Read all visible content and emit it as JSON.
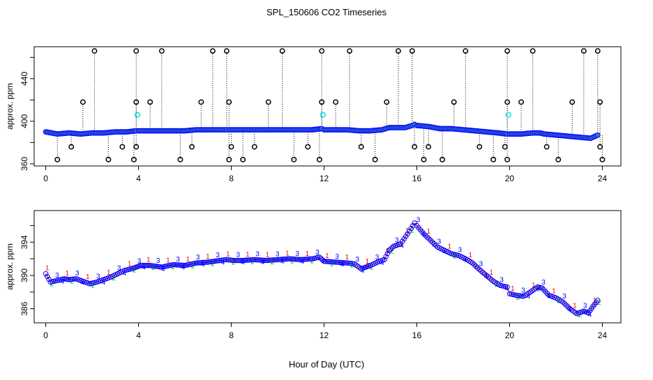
{
  "title": "SPL_150606  CO2 Timeseries",
  "xlabel": "Hour of Day (UTC)",
  "colors": {
    "point_main": "#0000ff",
    "point_fill": "#3a78c8",
    "line_red": "#ff0000",
    "label_green": "#00aa00",
    "spike_black": "#000000",
    "cyan": "#00e5e5"
  },
  "chart_data": [
    {
      "type": "scatter",
      "title": "SPL_150606  CO2 Timeseries",
      "xlabel": "",
      "ylabel": "approx. ppm",
      "xlim": [
        -0.5,
        24.8
      ],
      "ylim": [
        358,
        470
      ],
      "xticks": [
        "0",
        "4",
        "8",
        "12",
        "16",
        "20",
        "24"
      ],
      "yticks": [
        "360",
        "400",
        "440"
      ],
      "grid": false,
      "description_series": "main CO2 series with spikes",
      "series": [
        {
          "name": "",
          "x": [
            0,
            0.5,
            1,
            1.5,
            2,
            2.5,
            3,
            3.5,
            3.9,
            4,
            4.5,
            5,
            5.5,
            6,
            6.5,
            7,
            7.5,
            7.8,
            7.9,
            8.5,
            9,
            9.5,
            10,
            10.5,
            11,
            11.5,
            11.9,
            12,
            12.5,
            13,
            13.5,
            14,
            14.5,
            14.8,
            15,
            15.5,
            15.8,
            15.9,
            16,
            16.5,
            17,
            17.5,
            18,
            18.5,
            19,
            19.5,
            19.9,
            20,
            20.5,
            21,
            21.3,
            21.5,
            22,
            22.5,
            23,
            23.5,
            23.8
          ],
          "y": [
            390,
            388,
            389,
            388,
            389,
            389,
            390,
            390,
            391,
            391,
            391,
            391,
            391,
            391,
            392,
            392,
            392,
            392,
            392,
            392,
            392,
            392,
            392,
            392,
            392,
            392,
            393,
            392,
            392,
            392,
            391,
            391,
            392,
            394,
            394,
            394,
            396,
            397,
            396,
            395,
            393,
            393,
            392,
            391,
            390,
            389,
            388,
            388,
            388,
            389,
            389,
            388,
            387,
            386,
            385,
            384,
            387
          ]
        }
      ],
      "spikes_high": [
        2.1,
        3.9,
        5.0,
        7.2,
        7.8,
        10.2,
        11.9,
        13.1,
        15.2,
        15.8,
        18.1,
        19.9,
        21.0,
        23.2,
        23.8
      ],
      "spikes_mid": [
        1.6,
        3.9,
        4.5,
        6.7,
        7.9,
        9.6,
        11.9,
        12.5,
        14.7,
        17.6,
        19.9,
        20.5,
        22.7,
        23.9
      ],
      "spikes_low": [
        0.5,
        1.1,
        2.7,
        3.3,
        3.8,
        3.9,
        5.8,
        6.3,
        7.9,
        8.0,
        8.5,
        9.0,
        10.7,
        11.3,
        11.8,
        13.6,
        14.2,
        15.9,
        16.3,
        16.5,
        17.1,
        18.7,
        19.3,
        19.8,
        19.9,
        21.6,
        22.1,
        23.9,
        24.0
      ],
      "cyan_points": [
        [
          3.95,
          406
        ],
        [
          11.95,
          406
        ],
        [
          19.95,
          406
        ]
      ],
      "spike_high_value": 466,
      "spike_mid_value": 418,
      "spike_low_values": [
        364,
        376
      ]
    },
    {
      "type": "scatter",
      "title": "",
      "xlabel": "Hour of Day (UTC)",
      "ylabel": "approx. ppm",
      "xlim": [
        -0.5,
        24.8
      ],
      "ylim": [
        384.3,
        397.8
      ],
      "xticks": [
        "0",
        "4",
        "8",
        "12",
        "16",
        "20",
        "24"
      ],
      "yticks": [
        "386",
        "390",
        "394"
      ],
      "grid": false,
      "point_labels": [
        "1",
        "2",
        "3",
        "4"
      ],
      "series": [
        {
          "name": "",
          "x": [
            0,
            0.2,
            0.5,
            0.8,
            1.0,
            1.3,
            1.6,
            1.9,
            2.2,
            2.5,
            2.8,
            3.1,
            3.4,
            3.7,
            3.9,
            4.1,
            4.5,
            5.0,
            5.5,
            6.0,
            6.5,
            7.0,
            7.5,
            7.8,
            8.1,
            8.5,
            9.0,
            9.5,
            10.0,
            10.5,
            11.0,
            11.5,
            11.8,
            12.0,
            12.5,
            13.0,
            13.3,
            13.6,
            14.0,
            14.3,
            14.6,
            14.8,
            15.0,
            15.3,
            15.6,
            15.9,
            16.0,
            16.3,
            16.6,
            16.9,
            17.2,
            17.5,
            17.8,
            18.1,
            18.4,
            18.7,
            19.0,
            19.3,
            19.6,
            19.9,
            20.0,
            20.3,
            20.6,
            20.9,
            21.2,
            21.4,
            21.7,
            22.0,
            22.3,
            22.6,
            22.9,
            23.2,
            23.4,
            23.6,
            23.8
          ],
          "y": [
            390.2,
            389.2,
            389.4,
            389.6,
            389.5,
            389.6,
            389.3,
            389.0,
            389.2,
            389.5,
            389.8,
            390.2,
            390.6,
            390.8,
            391.0,
            391.2,
            391.2,
            391.0,
            391.3,
            391.2,
            391.5,
            391.6,
            391.8,
            391.9,
            391.8,
            391.8,
            391.9,
            391.8,
            391.9,
            392.0,
            391.9,
            392.0,
            392.2,
            391.7,
            391.6,
            391.5,
            391.4,
            390.8,
            391.2,
            391.6,
            391.9,
            393.0,
            393.5,
            393.8,
            395.0,
            396.3,
            396.0,
            395.0,
            394.2,
            393.4,
            393.0,
            392.6,
            392.4,
            392.0,
            391.5,
            390.7,
            390.0,
            389.3,
            388.8,
            388.6,
            387.8,
            387.6,
            387.5,
            388.0,
            388.6,
            388.5,
            387.6,
            387.3,
            386.8,
            386.0,
            385.4,
            385.7,
            385.5,
            386.3,
            387.0
          ]
        }
      ]
    }
  ]
}
